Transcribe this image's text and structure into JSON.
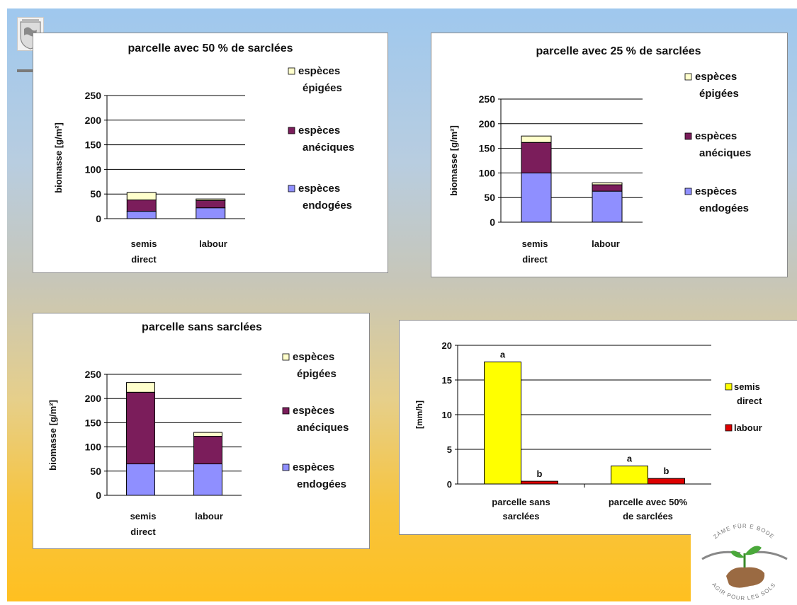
{
  "colors": {
    "epigees": "#ffffcc",
    "aneciques": "#7b1d5b",
    "endogees": "#8f8fff",
    "semis": "#ffff00",
    "labour": "#dd0000"
  },
  "logo": {
    "top_text": "ZÄME FÜR E BODE",
    "bottom_text": "AGIR POUR LES SOLS"
  },
  "chart_data": [
    {
      "type": "bar",
      "stacked": true,
      "title": "parcelle avec 50 % de sarclées",
      "ylabel": "biomasse [g/m²]",
      "ylim": [
        0,
        250
      ],
      "yticks": [
        "250",
        "200",
        "150",
        "100",
        "50",
        "0"
      ],
      "categories": [
        "semis direct",
        "labour"
      ],
      "series": [
        {
          "name": "espèces endogées",
          "values": [
            15,
            22
          ]
        },
        {
          "name": "espèces anéciques",
          "values": [
            23,
            15
          ]
        },
        {
          "name": "espèces épigées",
          "values": [
            15,
            3
          ]
        }
      ],
      "legend_position": "right"
    },
    {
      "type": "bar",
      "stacked": true,
      "title": "parcelle avec 25 % de sarclées",
      "ylabel": "biomasse [g/m²]",
      "ylim": [
        0,
        250
      ],
      "yticks": [
        "250",
        "200",
        "150",
        "100",
        "50",
        "0"
      ],
      "categories": [
        "semis direct",
        "labour"
      ],
      "series": [
        {
          "name": "espèces endogées",
          "values": [
            100,
            63
          ]
        },
        {
          "name": "espèces anéciques",
          "values": [
            62,
            13
          ]
        },
        {
          "name": "espèces épigées",
          "values": [
            13,
            4
          ]
        }
      ],
      "legend_position": "right"
    },
    {
      "type": "bar",
      "stacked": true,
      "title": "parcelle sans sarclées",
      "ylabel": "biomasse [g/m²]",
      "ylim": [
        0,
        250
      ],
      "yticks": [
        "250",
        "200",
        "150",
        "100",
        "50",
        "0"
      ],
      "categories": [
        "semis direct",
        "labour"
      ],
      "series": [
        {
          "name": "espèces endogées",
          "values": [
            65,
            65
          ]
        },
        {
          "name": "espèces anéciques",
          "values": [
            148,
            57
          ]
        },
        {
          "name": "espèces épigées",
          "values": [
            20,
            8
          ]
        }
      ],
      "legend_position": "right"
    },
    {
      "type": "bar",
      "stacked": false,
      "title": "",
      "ylabel": "[mm/h]",
      "ylim": [
        0,
        20
      ],
      "yticks": [
        "20",
        "15",
        "10",
        "5",
        "0"
      ],
      "categories": [
        "parcelle sans sarclées",
        "parcelle avec 50% de sarclées"
      ],
      "series": [
        {
          "name": "semis direct",
          "values": [
            17.6,
            2.6
          ],
          "labels": [
            "a",
            "a"
          ]
        },
        {
          "name": "labour",
          "values": [
            0.4,
            0.8
          ],
          "labels": [
            "b",
            "b"
          ]
        }
      ],
      "legend_position": "right"
    }
  ]
}
